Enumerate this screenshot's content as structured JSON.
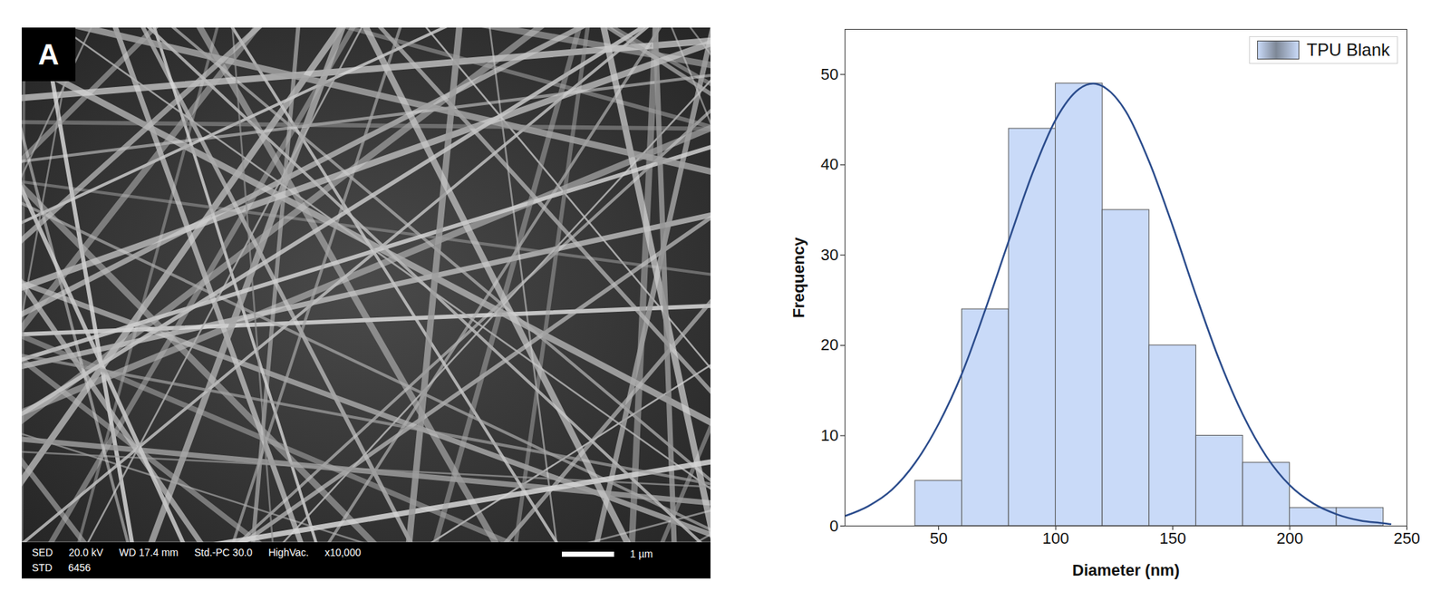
{
  "chart_data": {
    "type": "histogram",
    "x_label": "Diameter (nm)",
    "y_label": "Frequency",
    "bins": [
      40,
      60,
      80,
      100,
      120,
      140,
      160,
      180,
      200,
      220,
      240
    ],
    "series": [
      {
        "name": "TPU Blank",
        "type": "histogram",
        "color": "#c9daf8",
        "values": [
          5,
          24,
          44,
          49,
          35,
          20,
          10,
          7,
          2,
          2
        ]
      },
      {
        "type": "line",
        "color": "#2b4c8c",
        "line_style": "solid",
        "x": [
          10,
          20,
          30,
          40,
          50,
          60,
          70,
          80,
          90,
          100,
          110,
          116,
          120,
          130,
          140,
          150,
          160,
          170,
          180,
          190,
          200,
          210,
          220,
          230,
          240,
          243
        ],
        "values": [
          1.1,
          2.2,
          4.0,
          7.0,
          11.3,
          16.9,
          24.0,
          31.6,
          39.0,
          45.0,
          48.4,
          49.0,
          48.7,
          45.9,
          40.3,
          33.2,
          25.5,
          18.3,
          12.3,
          7.7,
          4.5,
          2.5,
          1.3,
          0.6,
          0.3,
          0.2
        ]
      }
    ],
    "xlim": [
      10,
      250
    ],
    "xticks": [
      50,
      100,
      150,
      200,
      250
    ],
    "ylim": [
      0,
      55
    ],
    "yticks": [
      0,
      10,
      20,
      30,
      40,
      50
    ],
    "legend": "top-right",
    "grid": false
  },
  "image_panel": {
    "letter": "A",
    "footer_line1": [
      "SED",
      "20.0 kV",
      "WD 17.4 mm",
      "Std.-PC 30.0",
      "HighVac.",
      "x10,000"
    ],
    "footer_line2": [
      "STD",
      "6456"
    ],
    "scale_bar_label": "1 µm"
  }
}
